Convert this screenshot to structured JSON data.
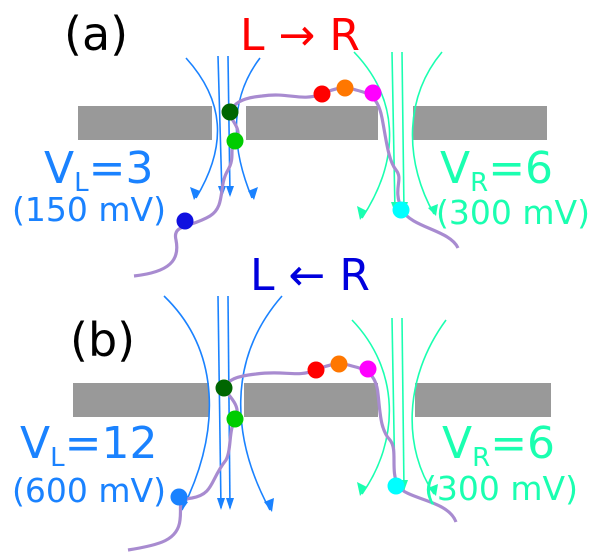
{
  "panels": [
    {
      "label": "(a)",
      "direction": "L → R",
      "direction_color": "#ff0000",
      "left": {
        "main": "V",
        "sub": "L",
        "value": "=3",
        "mv": "(150 mV)"
      },
      "right": {
        "main": "V",
        "sub": "R",
        "value": "=6",
        "mv": "(300 mV)"
      }
    },
    {
      "label": "(b)",
      "direction": "L ← R",
      "direction_color": "#0000dd",
      "left": {
        "main": "V",
        "sub": "L",
        "value": "=12",
        "mv": "(600 mV)"
      },
      "right": {
        "main": "V",
        "sub": "R",
        "value": "=6",
        "mv": "(300 mV)"
      }
    }
  ],
  "colors": {
    "left_field": "#1a82ff",
    "right_field": "#1affb0",
    "membrane": "#999999",
    "polymer": "#a88bd0",
    "beads": [
      "#1010e0",
      "#00cc00",
      "#006600",
      "#ff0000",
      "#ff7700",
      "#ff00ff",
      "#00ffff"
    ]
  }
}
